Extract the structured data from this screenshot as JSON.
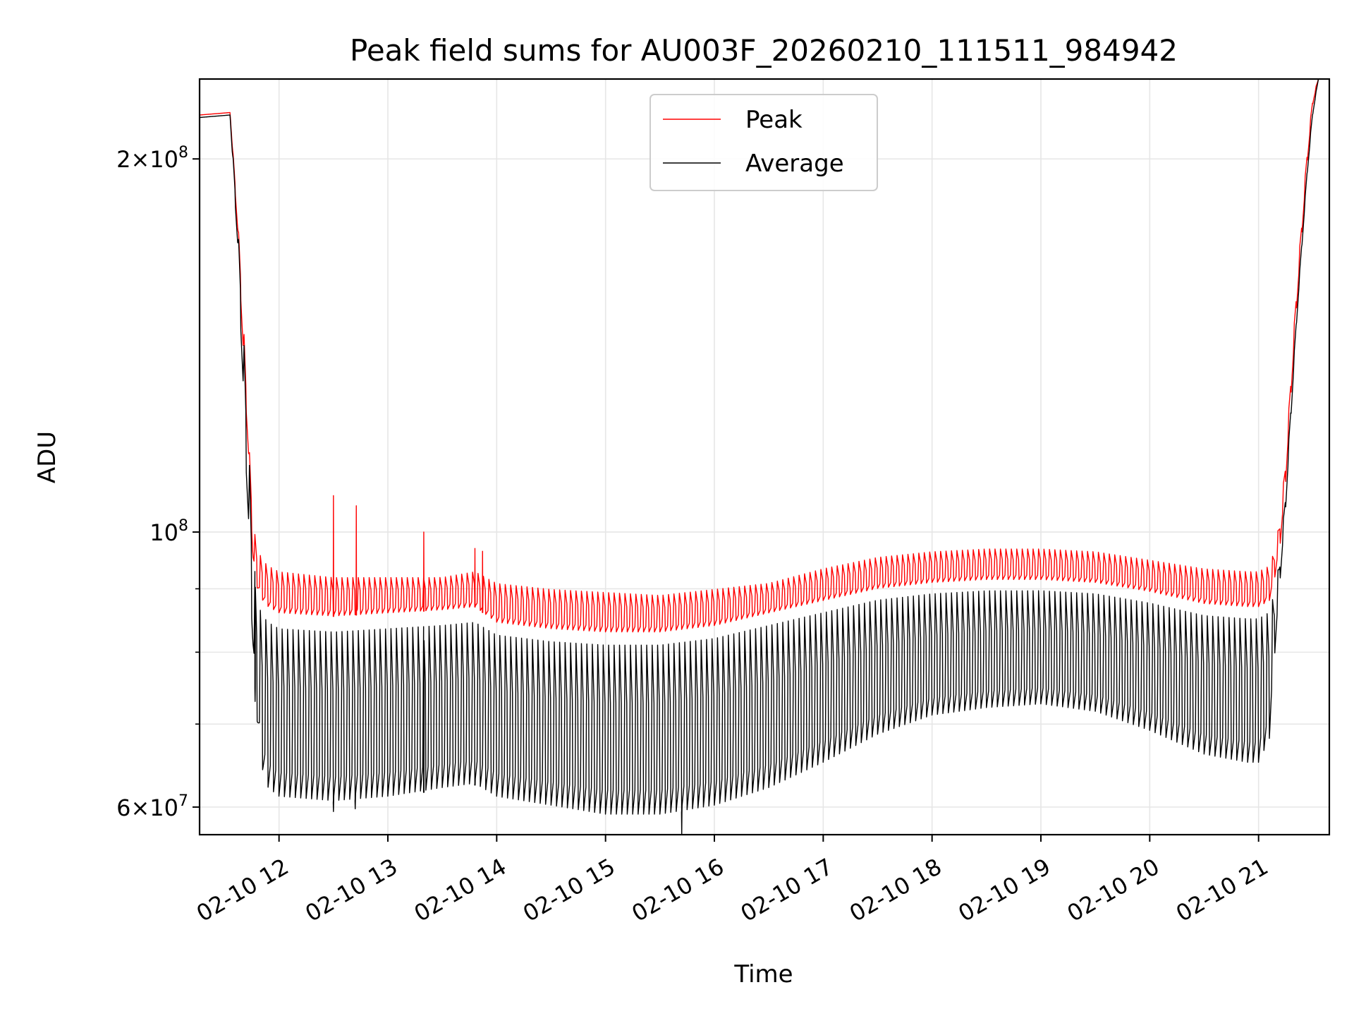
{
  "chart_data": {
    "type": "line",
    "title": "Peak field sums for AU003F_20260210_111511_984942",
    "xlabel": "Time",
    "ylabel": "ADU",
    "yscale": "log",
    "xlim": [
      11.27,
      21.65
    ],
    "ylim": [
      57000000,
      232000000
    ],
    "grid": true,
    "legend_position": "top-center",
    "x_ticks": [
      {
        "value": 12,
        "label": "02-10 12"
      },
      {
        "value": 13,
        "label": "02-10 13"
      },
      {
        "value": 14,
        "label": "02-10 14"
      },
      {
        "value": 15,
        "label": "02-10 15"
      },
      {
        "value": 16,
        "label": "02-10 16"
      },
      {
        "value": 17,
        "label": "02-10 17"
      },
      {
        "value": 18,
        "label": "02-10 18"
      },
      {
        "value": 19,
        "label": "02-10 19"
      },
      {
        "value": 20,
        "label": "02-10 20"
      },
      {
        "value": 21,
        "label": "02-10 21"
      }
    ],
    "y_ticks_major": [
      {
        "value": 60000000,
        "base": "6",
        "exp": "7"
      },
      {
        "value": 100000000,
        "base": "",
        "exp": "8"
      },
      {
        "value": 200000000,
        "base": "2",
        "exp": "8"
      }
    ],
    "y_ticks_minor": [
      70000000,
      80000000,
      90000000
    ],
    "series": [
      {
        "name": "Peak",
        "color": "#ff0000",
        "envelope_x": [
          11.27,
          11.55,
          11.62,
          11.67,
          11.72,
          11.76,
          11.8,
          11.85,
          11.9,
          12.0,
          12.5,
          13.0,
          13.5,
          13.8,
          14.0,
          14.5,
          15.0,
          15.5,
          16.0,
          16.5,
          17.0,
          17.5,
          18.0,
          18.5,
          19.0,
          19.5,
          20.0,
          20.5,
          20.9,
          21.0,
          21.1,
          21.15,
          21.2,
          21.25,
          21.3,
          21.35,
          21.4,
          21.45,
          21.5,
          21.55,
          21.6,
          21.65
        ],
        "upper": [
          217000000,
          218000000,
          180000000,
          150000000,
          120000000,
          102000000,
          97000000,
          95000000,
          94000000,
          93000000,
          92000000,
          92000000,
          92000000,
          93000000,
          91000000,
          90000000,
          89500000,
          89000000,
          90000000,
          91000000,
          93500000,
          95500000,
          96500000,
          97000000,
          97000000,
          96500000,
          95000000,
          93500000,
          93000000,
          93000000,
          94000000,
          97000000,
          103000000,
          115000000,
          135000000,
          158000000,
          180000000,
          205000000,
          225000000,
          232000000,
          232000000,
          232000000
        ],
        "lower": [
          217000000,
          218000000,
          175000000,
          140000000,
          115000000,
          95000000,
          90000000,
          88000000,
          87000000,
          86000000,
          85500000,
          86000000,
          86500000,
          87000000,
          84500000,
          83500000,
          83000000,
          83000000,
          84000000,
          86000000,
          88000000,
          90000000,
          91000000,
          91500000,
          91500000,
          91000000,
          89500000,
          87500000,
          87000000,
          87000000,
          88000000,
          92000000,
          98000000,
          110000000,
          130000000,
          152000000,
          175000000,
          200000000,
          222000000,
          232000000,
          232000000,
          232000000
        ]
      },
      {
        "name": "Average",
        "color": "#000000",
        "envelope_x": [
          11.27,
          11.55,
          11.62,
          11.67,
          11.72,
          11.76,
          11.8,
          11.85,
          11.9,
          12.0,
          12.5,
          13.0,
          13.5,
          13.8,
          14.0,
          14.5,
          15.0,
          15.5,
          16.0,
          16.5,
          17.0,
          17.5,
          18.0,
          18.5,
          19.0,
          19.5,
          20.0,
          20.5,
          20.9,
          21.0,
          21.1,
          21.15,
          21.2,
          21.25,
          21.3,
          21.35,
          21.4,
          21.45,
          21.5,
          21.55,
          21.6,
          21.65
        ],
        "upper": [
          216000000,
          217000000,
          178000000,
          147000000,
          118000000,
          98000000,
          88000000,
          86000000,
          85000000,
          84000000,
          83500000,
          84000000,
          84500000,
          85000000,
          83000000,
          82000000,
          81500000,
          81500000,
          82500000,
          84500000,
          86500000,
          88500000,
          89500000,
          90000000,
          90000000,
          89500000,
          88000000,
          86000000,
          85500000,
          85500000,
          86500000,
          90000000,
          96000000,
          108000000,
          128000000,
          150000000,
          173000000,
          198000000,
          220000000,
          232000000,
          232000000,
          232000000
        ],
        "lower": [
          216000000,
          217000000,
          170000000,
          130000000,
          100000000,
          80000000,
          70000000,
          64000000,
          62000000,
          61000000,
          60500000,
          61000000,
          62000000,
          62500000,
          61000000,
          60000000,
          59000000,
          59000000,
          60000000,
          62000000,
          65000000,
          68500000,
          71000000,
          72000000,
          72500000,
          71500000,
          69000000,
          66000000,
          65000000,
          65000000,
          68000000,
          80000000,
          92000000,
          105000000,
          125000000,
          148000000,
          171000000,
          196000000,
          218000000,
          232000000,
          232000000,
          232000000
        ],
        "spikes": [
          {
            "x": 11.78,
            "value": 73000000
          },
          {
            "x": 12.5,
            "value": 59500000
          },
          {
            "x": 12.7,
            "value": 59800000
          },
          {
            "x": 13.33,
            "value": 63000000
          },
          {
            "x": 13.8,
            "value": 62500000
          },
          {
            "x": 15.7,
            "value": 57000000
          }
        ]
      }
    ],
    "peak_spikes": [
      {
        "x": 12.5,
        "value": 107000000
      },
      {
        "x": 12.71,
        "value": 105000000
      },
      {
        "x": 13.33,
        "value": 100000000
      },
      {
        "x": 13.8,
        "value": 97000000
      },
      {
        "x": 13.87,
        "value": 96500000
      }
    ],
    "oscillation_period_hours": 0.05
  }
}
